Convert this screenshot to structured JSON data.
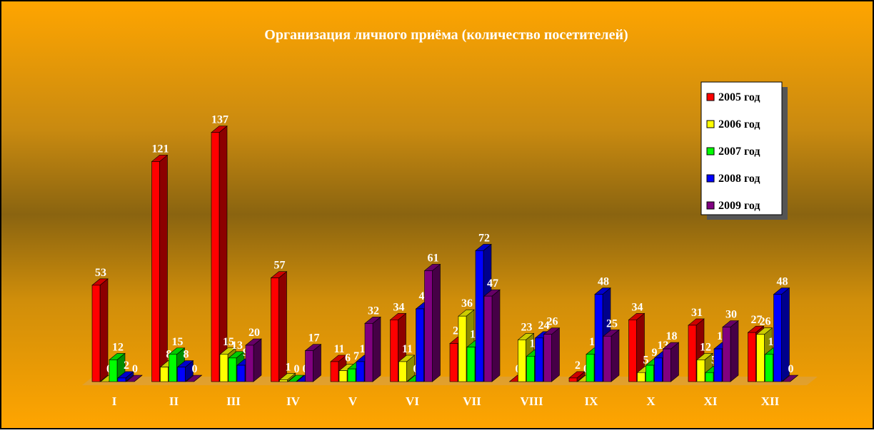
{
  "chart_data": {
    "type": "bar3d",
    "title": "Организация личного приёма (количество посетителей)",
    "categories": [
      "I",
      "II",
      "III",
      "IV",
      "V",
      "VI",
      "VII",
      "VIII",
      "IX",
      "X",
      "XI",
      "XII"
    ],
    "series": [
      {
        "name": "2005 год",
        "color": "#ff0000",
        "values": [
          53,
          121,
          137,
          57,
          11,
          34,
          21,
          0,
          2,
          34,
          31,
          27
        ]
      },
      {
        "name": "2006 год",
        "color": "#ffff00",
        "values": [
          0,
          8,
          15,
          1,
          6,
          11,
          36,
          23,
          0,
          5,
          12,
          26
        ]
      },
      {
        "name": "2007 год",
        "color": "#00ff00",
        "values": [
          12,
          15,
          13,
          0,
          7,
          0,
          19,
          14,
          15,
          9,
          5,
          15
        ]
      },
      {
        "name": "2008 год",
        "color": "#0000ff",
        "values": [
          2,
          8,
          9,
          0,
          11,
          40,
          72,
          24,
          48,
          13,
          18,
          48
        ]
      },
      {
        "name": "2009 год",
        "color": "#800080",
        "values": [
          0,
          0,
          20,
          17,
          32,
          61,
          47,
          26,
          25,
          18,
          30,
          0
        ]
      }
    ],
    "ylim": [
      0,
      140
    ]
  }
}
